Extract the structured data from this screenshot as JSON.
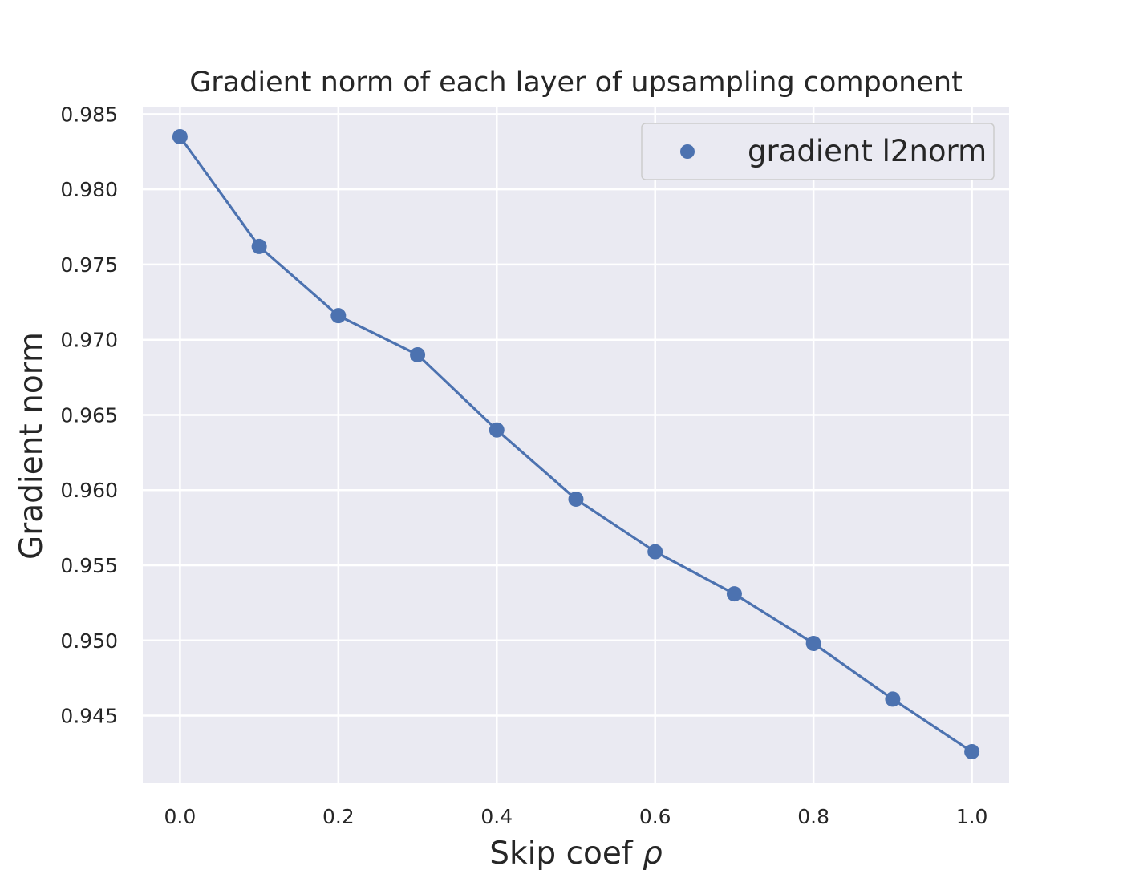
{
  "chart_data": {
    "type": "line",
    "title": "Gradient norm of each layer of upsampling component",
    "xlabel": "Skip coef",
    "xlabel_symbol": "ρ",
    "ylabel": "Gradient norm",
    "x": [
      0.0,
      0.1,
      0.2,
      0.3,
      0.4,
      0.5,
      0.6,
      0.7,
      0.8,
      0.9,
      1.0
    ],
    "series": [
      {
        "name": "gradient l2norm",
        "values": [
          0.9835,
          0.9762,
          0.9716,
          0.969,
          0.964,
          0.9594,
          0.9559,
          0.9531,
          0.9498,
          0.9461,
          0.9426
        ],
        "color": "#4c72b0",
        "markers": true
      }
    ],
    "xlim": [
      -0.047,
      1.047
    ],
    "ylim": [
      0.94055,
      0.9855
    ],
    "xticks": [
      "0.0",
      "0.2",
      "0.4",
      "0.6",
      "0.8",
      "1.0"
    ],
    "yticks": [
      "0.945",
      "0.950",
      "0.955",
      "0.960",
      "0.965",
      "0.970",
      "0.975",
      "0.980",
      "0.985"
    ],
    "grid": true,
    "legend_position": "top-right",
    "background": "#eaeaf2",
    "grid_color": "#ffffff"
  }
}
